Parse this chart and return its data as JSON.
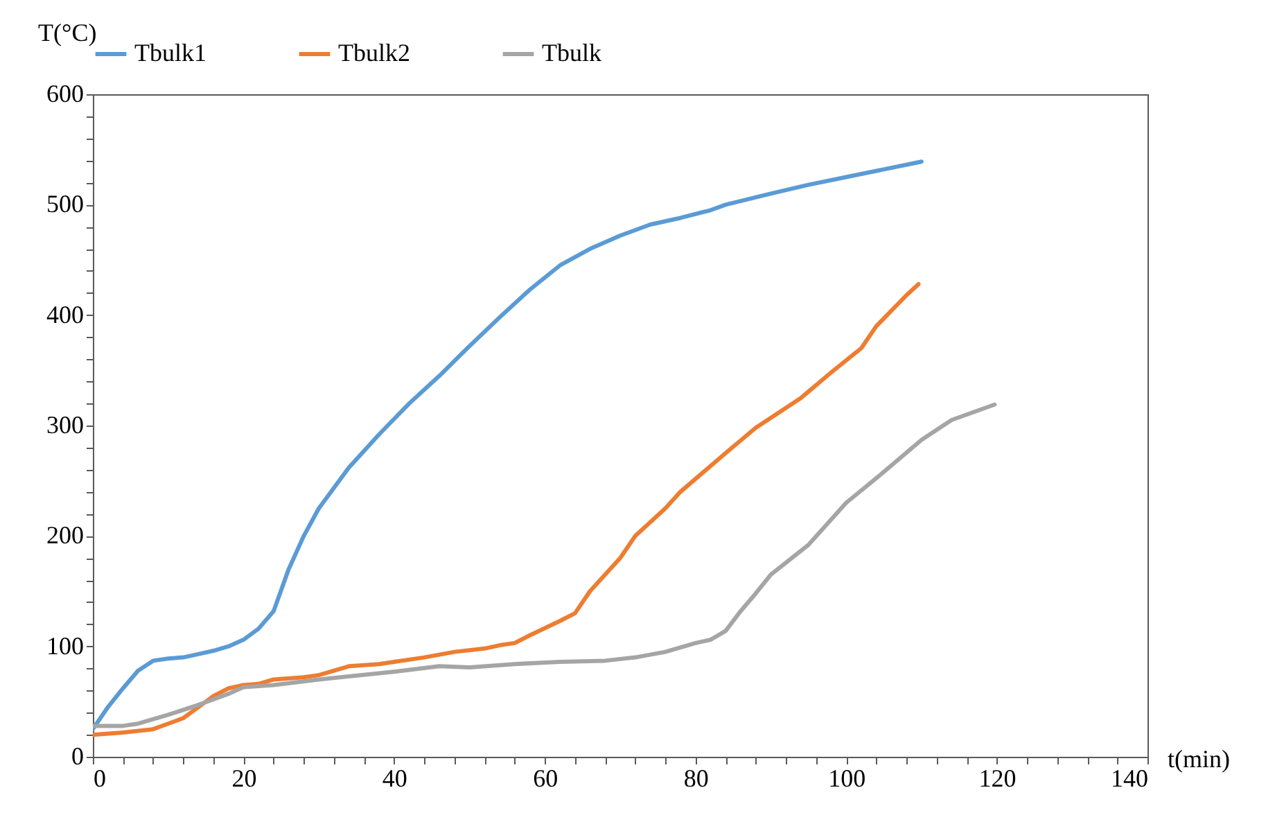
{
  "chart_data": {
    "type": "line",
    "xlabel": "t(min)",
    "ylabel": "T(°C)",
    "legend": "top",
    "grid": false,
    "line_style": "solid",
    "marker": "none",
    "xlim": [
      0,
      140
    ],
    "ylim": [
      0,
      600
    ],
    "xticks": [
      0,
      {
        "value": 4,
        "label": null
      },
      {
        "value": 8,
        "label": null
      },
      {
        "value": 12,
        "label": null
      },
      {
        "value": 16,
        "label": null
      },
      20,
      {
        "value": 24,
        "label": null
      },
      {
        "value": 28,
        "label": null
      },
      {
        "value": 32,
        "label": null
      },
      {
        "value": 36,
        "label": null
      },
      40,
      {
        "value": 44,
        "label": null
      },
      {
        "value": 48,
        "label": null
      },
      {
        "value": 52,
        "label": null
      },
      {
        "value": 56,
        "label": null
      },
      60,
      {
        "value": 64,
        "label": null
      },
      {
        "value": 68,
        "label": null
      },
      {
        "value": 72,
        "label": null
      },
      {
        "value": 76,
        "label": null
      },
      80,
      {
        "value": 84,
        "label": null
      },
      {
        "value": 88,
        "label": null
      },
      {
        "value": 92,
        "label": null
      },
      {
        "value": 96,
        "label": null
      },
      100,
      {
        "value": 104,
        "label": null
      },
      {
        "value": 108,
        "label": null
      },
      {
        "value": 112,
        "label": null
      },
      {
        "value": 116,
        "label": null
      },
      120,
      {
        "value": 124,
        "label": null
      },
      {
        "value": 128,
        "label": null
      },
      {
        "value": 132,
        "label": null
      },
      {
        "value": 136,
        "label": null
      },
      140
    ],
    "yticks": [
      0,
      {
        "value": 20,
        "label": null
      },
      {
        "value": 40,
        "label": null
      },
      {
        "value": 60,
        "label": null
      },
      {
        "value": 80,
        "label": null
      },
      100,
      {
        "value": 120,
        "label": null
      },
      {
        "value": 140,
        "label": null
      },
      {
        "value": 160,
        "label": null
      },
      {
        "value": 180,
        "label": null
      },
      200,
      {
        "value": 220,
        "label": null
      },
      {
        "value": 240,
        "label": null
      },
      {
        "value": 260,
        "label": null
      },
      {
        "value": 280,
        "label": null
      },
      300,
      {
        "value": 320,
        "label": null
      },
      {
        "value": 340,
        "label": null
      },
      {
        "value": 360,
        "label": null
      },
      {
        "value": 380,
        "label": null
      },
      400,
      {
        "value": 420,
        "label": null
      },
      {
        "value": 440,
        "label": null
      },
      {
        "value": 460,
        "label": null
      },
      {
        "value": 480,
        "label": null
      },
      500,
      {
        "value": 520,
        "label": null
      },
      {
        "value": 540,
        "label": null
      },
      {
        "value": 560,
        "label": null
      },
      {
        "value": 580,
        "label": null
      },
      600
    ],
    "series": [
      {
        "name": "Tbulk1",
        "color": "#5b9bd5",
        "x": [
          0,
          2,
          4,
          6,
          8,
          10,
          12,
          14,
          16,
          18,
          20,
          22,
          24,
          26,
          28,
          30,
          34,
          38,
          42,
          46,
          50,
          54,
          58,
          62,
          66,
          70,
          74,
          78,
          82,
          84,
          90,
          95,
          100,
          105,
          110
        ],
        "values": [
          25,
          45,
          62,
          78,
          87,
          89,
          90,
          93,
          96,
          100,
          106,
          116,
          132,
          170,
          200,
          225,
          262,
          292,
          320,
          345,
          372,
          398,
          423,
          445,
          460,
          472,
          482,
          488,
          495,
          500,
          510,
          518,
          525,
          532,
          539
        ]
      },
      {
        "name": "Tbulk2",
        "color": "#ed7d31",
        "x": [
          0,
          4,
          8,
          10,
          12,
          14,
          16,
          18,
          20,
          22,
          24,
          28,
          30,
          34,
          38,
          40,
          44,
          48,
          52,
          54,
          56,
          58,
          62,
          64,
          66,
          70,
          72,
          76,
          78,
          84,
          88,
          94,
          98,
          102,
          104,
          108,
          109.6
        ],
        "values": [
          20,
          22,
          25,
          30,
          35,
          45,
          55,
          62,
          65,
          66,
          70,
          72,
          74,
          82,
          84,
          86,
          90,
          95,
          98,
          101,
          103,
          110,
          123,
          130,
          150,
          180,
          200,
          225,
          240,
          275,
          298,
          325,
          348,
          370,
          390,
          418,
          428
        ]
      },
      {
        "name": "Tbulk",
        "color": "#a5a5a5",
        "x": [
          0,
          4,
          6,
          10,
          14,
          18,
          20,
          24,
          30,
          40,
          46,
          50,
          56,
          62,
          68,
          72,
          76,
          80,
          82,
          84,
          86,
          88,
          90,
          95,
          100,
          105,
          110,
          114,
          119.7
        ],
        "values": [
          28,
          28,
          30,
          38,
          47,
          57,
          63,
          65,
          70,
          77,
          82,
          81,
          84,
          86,
          87,
          90,
          95,
          103,
          106,
          114,
          132,
          148,
          165,
          192,
          230,
          258,
          287,
          305,
          319
        ]
      }
    ]
  }
}
